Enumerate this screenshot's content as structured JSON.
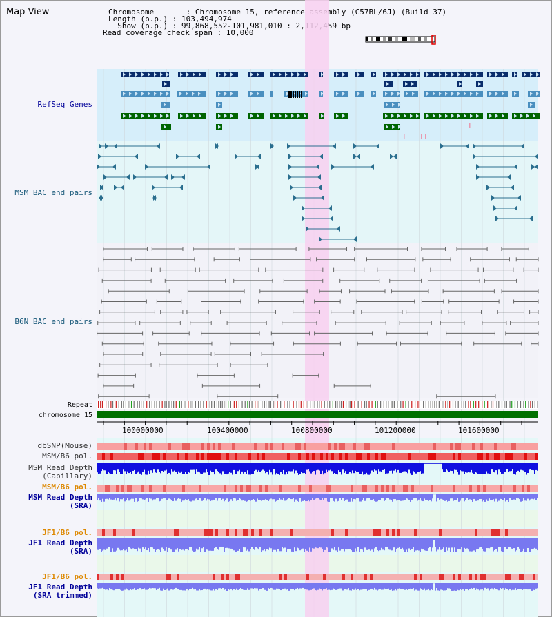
{
  "header": {
    "title": "Map View",
    "info_lines": [
      "Chromosome       : Chromosome 15, reference assembly (C57BL/6J) (Build 37)",
      "Length (b.p.) : 103,494,974",
      "  Show (b.p.) : 99,868,552-101,981,010 : 2,112,459 bp",
      "Read coverage check span : 10,000"
    ]
  },
  "tracks": {
    "refseq": "RefSeq Genes",
    "msm_bac": "MSM BAC end pairs",
    "b6n_bac": "B6N BAC end pairs",
    "repeat": "Repeat",
    "chromosome": "chromosome 15",
    "dbsnp": "dbSNP(Mouse)",
    "msm_pol1": "MSM/B6 pol.",
    "msm_depth_cap_1": "MSM Read Depth",
    "msm_depth_cap_2": "(Capillary)",
    "msm_pol2": "MSM/B6 pol.",
    "msm_depth_sra_1": "MSM Read Depth",
    "msm_depth_sra_2": "(SRA)",
    "jf1_pol1": "JF1/B6 pol.",
    "jf1_depth_sra_1": "JF1 Read Depth",
    "jf1_depth_sra_2": "(SRA)",
    "jf1_pol2": "JF1/B6 pol.",
    "jf1_depth_trim_1": "JF1 Read Depth",
    "jf1_depth_trim_2": "(SRA trimmed)"
  },
  "axis": {
    "ticks": [
      "100000000",
      "100400000",
      "100800000",
      "101200000",
      "101600000"
    ]
  },
  "colors": {
    "refseq_dark": "#0a2d6b",
    "refseq_mid": "#4a8fbf",
    "refseq_green": "#006400",
    "bac_msm": "#2a6e8e",
    "bac_b6n": "#666666",
    "highlight": "#f8d0f0",
    "depth_cap": "#1010e0",
    "depth_sra": "#7878f0",
    "label_blue": "#000099",
    "label_orange": "#dd8800"
  }
}
